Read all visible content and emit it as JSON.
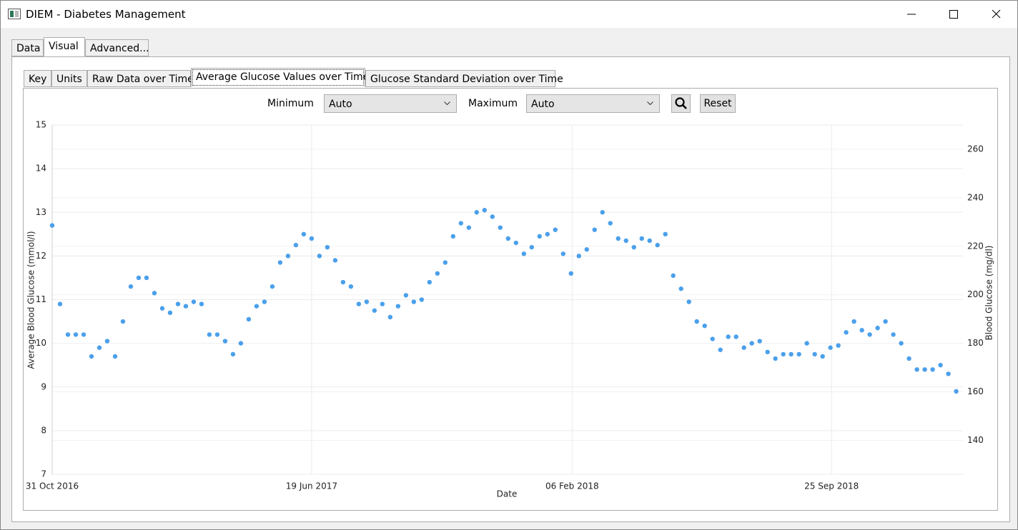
{
  "window": {
    "title": "DIEM - Diabetes Management"
  },
  "tabs": [
    "Data",
    "Visual",
    "Advanced..."
  ],
  "subtabs": [
    "Key",
    "Units",
    "Raw Data over Time",
    "Average Glucose Values over Time",
    "Glucose Standard Deviation over Time"
  ],
  "controls": {
    "minimum_label": "Minimum",
    "minimum_value": "Auto",
    "maximum_label": "Maximum",
    "maximum_value": "Auto",
    "reset": "Reset"
  },
  "chart_data": {
    "type": "scatter",
    "x_label": "Date",
    "y_label": "Average Blood Glucose (mmol/l)",
    "y2_label": "Blood Glucose (mg/dl)",
    "xlim": [
      "2016-10-31",
      "2019-01-20"
    ],
    "xticks": [
      {
        "value": "2016-10-31",
        "label": "31 Oct 2016"
      },
      {
        "value": "2017-06-19",
        "label": "19 Jun 2017"
      },
      {
        "value": "2018-02-06",
        "label": "06 Feb 2018"
      },
      {
        "value": "2018-09-25",
        "label": "25 Sep 2018"
      }
    ],
    "ylim": [
      7,
      15
    ],
    "yticks": [
      7,
      8,
      9,
      10,
      11,
      12,
      13,
      14,
      15
    ],
    "y2lim": [
      126,
      270
    ],
    "y2ticks": [
      140,
      160,
      180,
      200,
      220,
      240,
      260
    ],
    "grid": true,
    "series": [
      {
        "color": "#2b8fe8",
        "x": [
          "2016-10-31",
          "2016-11-07",
          "2016-11-14",
          "2016-11-21",
          "2016-11-28",
          "2016-12-05",
          "2016-12-12",
          "2016-12-19",
          "2016-12-26",
          "2017-01-02",
          "2017-01-09",
          "2017-01-16",
          "2017-01-23",
          "2017-01-30",
          "2017-02-06",
          "2017-02-13",
          "2017-02-20",
          "2017-02-27",
          "2017-03-06",
          "2017-03-13",
          "2017-03-20",
          "2017-03-27",
          "2017-04-03",
          "2017-04-10",
          "2017-04-17",
          "2017-04-24",
          "2017-05-01",
          "2017-05-08",
          "2017-05-15",
          "2017-05-22",
          "2017-05-29",
          "2017-06-05",
          "2017-06-12",
          "2017-06-19",
          "2017-06-26",
          "2017-07-03",
          "2017-07-10",
          "2017-07-17",
          "2017-07-24",
          "2017-07-31",
          "2017-08-07",
          "2017-08-14",
          "2017-08-21",
          "2017-08-28",
          "2017-09-04",
          "2017-09-11",
          "2017-09-18",
          "2017-09-25",
          "2017-10-02",
          "2017-10-09",
          "2017-10-16",
          "2017-10-23",
          "2017-10-30",
          "2017-11-06",
          "2017-11-13",
          "2017-11-20",
          "2017-11-27",
          "2017-12-04",
          "2017-12-11",
          "2017-12-18",
          "2017-12-25",
          "2018-01-01",
          "2018-01-08",
          "2018-01-15",
          "2018-01-22",
          "2018-01-29",
          "2018-02-05",
          "2018-02-12",
          "2018-02-19",
          "2018-02-26",
          "2018-03-05",
          "2018-03-12",
          "2018-03-19",
          "2018-03-26",
          "2018-04-02",
          "2018-04-09",
          "2018-04-16",
          "2018-04-23",
          "2018-04-30",
          "2018-05-07",
          "2018-05-14",
          "2018-05-21",
          "2018-05-28",
          "2018-06-04",
          "2018-06-11",
          "2018-06-18",
          "2018-06-25",
          "2018-07-02",
          "2018-07-09",
          "2018-07-16",
          "2018-07-23",
          "2018-07-30",
          "2018-08-06",
          "2018-08-13",
          "2018-08-20",
          "2018-08-27",
          "2018-09-03",
          "2018-09-10",
          "2018-09-17",
          "2018-09-24",
          "2018-10-01",
          "2018-10-08",
          "2018-10-15",
          "2018-10-22",
          "2018-10-29",
          "2018-11-05",
          "2018-11-12",
          "2018-11-19",
          "2018-11-26",
          "2018-12-03",
          "2018-12-10",
          "2018-12-17",
          "2018-12-24",
          "2018-12-31",
          "2019-01-07",
          "2019-01-14"
        ],
        "values": [
          12.7,
          10.9,
          10.2,
          10.2,
          10.2,
          9.7,
          9.9,
          10.05,
          9.7,
          10.5,
          11.3,
          11.5,
          11.5,
          11.15,
          10.8,
          10.7,
          10.9,
          10.85,
          10.95,
          10.9,
          10.2,
          10.2,
          10.05,
          9.75,
          10.0,
          10.55,
          10.85,
          10.95,
          11.3,
          11.85,
          12.0,
          12.25,
          12.5,
          12.4,
          12.0,
          12.2,
          11.9,
          11.4,
          11.3,
          10.9,
          10.95,
          10.75,
          10.9,
          10.6,
          10.85,
          11.1,
          10.95,
          11.0,
          11.4,
          11.6,
          11.85,
          12.45,
          12.75,
          12.65,
          13.0,
          13.05,
          12.9,
          12.65,
          12.4,
          12.3,
          12.05,
          12.2,
          12.45,
          12.5,
          12.6,
          12.05,
          11.6,
          12.0,
          12.15,
          12.6,
          13.0,
          12.75,
          12.4,
          12.35,
          12.2,
          12.4,
          12.35,
          12.25,
          12.5,
          11.55,
          11.25,
          10.95,
          10.5,
          10.4,
          10.1,
          9.85,
          10.15,
          10.15,
          9.9,
          10.0,
          10.05,
          9.8,
          9.65,
          9.75,
          9.75,
          9.75,
          10.0,
          9.75,
          9.7,
          9.9,
          9.95,
          10.25,
          10.5,
          10.3,
          10.2,
          10.35,
          10.5,
          10.2,
          10.0,
          9.65,
          9.4,
          9.4,
          9.4,
          9.5,
          9.3,
          8.9
        ]
      }
    ]
  }
}
